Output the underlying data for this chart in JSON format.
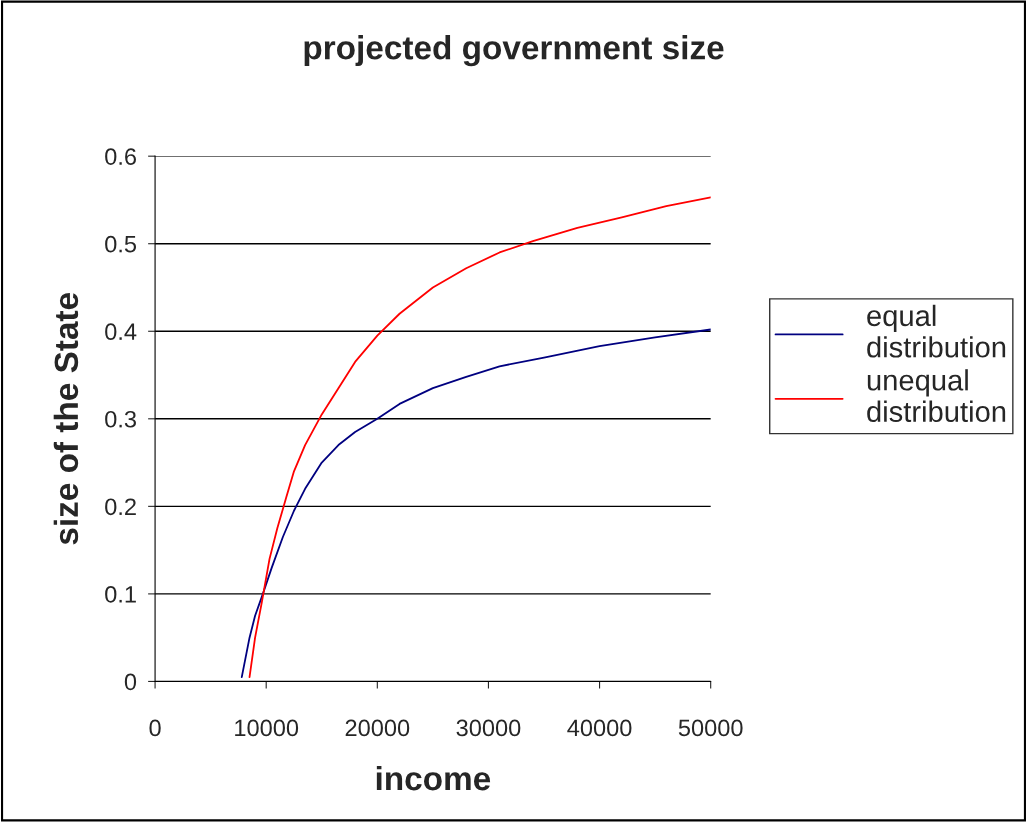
{
  "chart_data": {
    "type": "line",
    "title": "projected government size",
    "xlabel": "income",
    "ylabel": "size of the State",
    "xlim": [
      0,
      50000
    ],
    "xticks": [
      0,
      10000,
      20000,
      30000,
      40000,
      50000
    ],
    "ylim": [
      0,
      0.6
    ],
    "yticks": [
      0,
      0.1,
      0.2,
      0.3,
      0.4,
      0.5,
      0.6
    ],
    "grid": "y",
    "legend": "right",
    "marker": "none",
    "line_style": "solid",
    "series": [
      {
        "name": "equal distribution",
        "color": "#000080",
        "x": [
          7800,
          8500,
          9000,
          9700,
          10500,
          11500,
          12500,
          13500,
          15000,
          16500,
          18000,
          20000,
          22000,
          25000,
          28000,
          31000,
          35000,
          40000,
          45000,
          50000
        ],
        "values": [
          0.005,
          0.05,
          0.075,
          0.1,
          0.13,
          0.165,
          0.195,
          0.22,
          0.25,
          0.27,
          0.285,
          0.3,
          0.317,
          0.335,
          0.348,
          0.36,
          0.37,
          0.383,
          0.393,
          0.402
        ]
      },
      {
        "name": "unequal distribution",
        "color": "#ff0000",
        "x": [
          8500,
          9000,
          9600,
          10300,
          11000,
          11800,
          12500,
          13500,
          15000,
          16500,
          18000,
          20000,
          22000,
          25000,
          28000,
          31000,
          34000,
          38000,
          42000,
          46000,
          50000
        ],
        "values": [
          0.005,
          0.05,
          0.09,
          0.14,
          0.175,
          0.21,
          0.24,
          0.27,
          0.305,
          0.335,
          0.365,
          0.395,
          0.42,
          0.45,
          0.472,
          0.49,
          0.503,
          0.518,
          0.53,
          0.543,
          0.553
        ]
      }
    ]
  }
}
